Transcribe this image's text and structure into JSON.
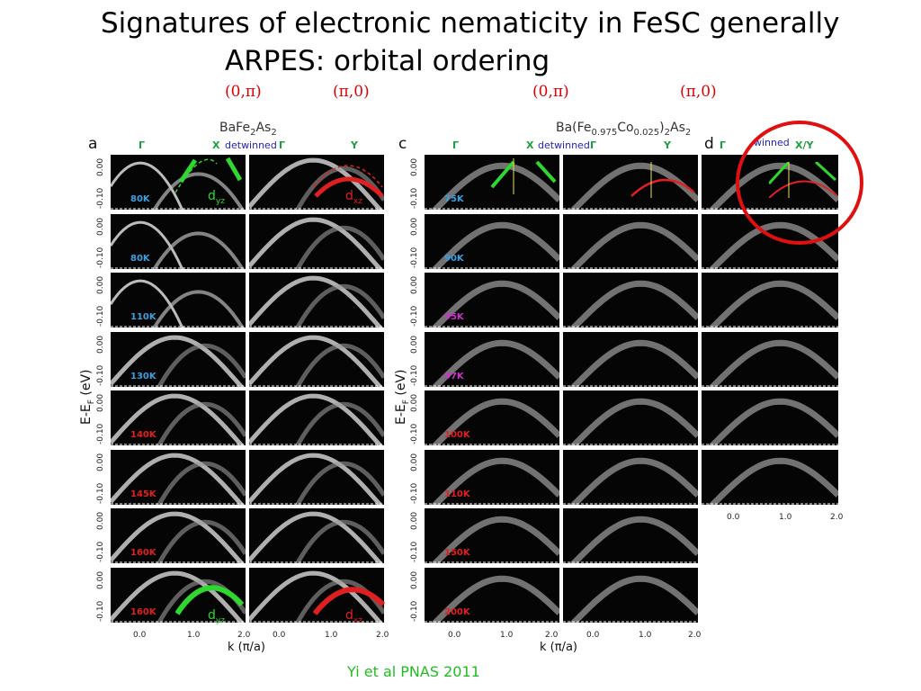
{
  "title": {
    "line1": "Signatures of electronic nematicity in FeSC generally",
    "line2": "ARPES: orbital ordering"
  },
  "momentum_labels": [
    "(0,π)",
    "(π,0)",
    "(0,π)",
    "(π,0)"
  ],
  "compound_a": "BaFe₂As₂",
  "compound_c": "Ba(Fe₀.₉₇₅Co₀.₀₂₅)₂As₂",
  "panel_letters": {
    "a": "a",
    "c": "c",
    "d": "d"
  },
  "symmetry": {
    "gamma": "Γ",
    "x": "X",
    "y": "Y",
    "xy": "X/Y",
    "detwinned": "detwinned",
    "winned": "winned"
  },
  "temps_a": [
    "80K",
    "80K",
    "110K",
    "130K",
    "140K",
    "145K",
    "160K",
    "160K"
  ],
  "temps_c": [
    "75K",
    "90K",
    "95K",
    "97K",
    "100K",
    "110K",
    "150K",
    "200K"
  ],
  "temp_colors_a": [
    "#3aa0e0",
    "#3aa0e0",
    "#3aa0e0",
    "#3aa0e0",
    "#e02020",
    "#e02020",
    "#e02020",
    "#e02020"
  ],
  "temp_colors_c": [
    "#3aa0e0",
    "#3aa0e0",
    "#d030d0",
    "#d030d0",
    "#e02020",
    "#e02020",
    "#e02020",
    "#e02020"
  ],
  "orbitals": {
    "dyz": "d",
    "dyz_sub": "yz",
    "dxz": "d",
    "dxz_sub": "xz"
  },
  "yticks": [
    "0.00",
    "-0.10"
  ],
  "xticks": [
    "0.0",
    "1.0",
    "2.0"
  ],
  "xlabel": "k (π/a)",
  "ylabel": "E-EF (eV)",
  "citation": "Yi et al PNAS 2011",
  "colors": {
    "green": "#2fd82f",
    "red": "#e02020",
    "circle": "#e01010"
  }
}
